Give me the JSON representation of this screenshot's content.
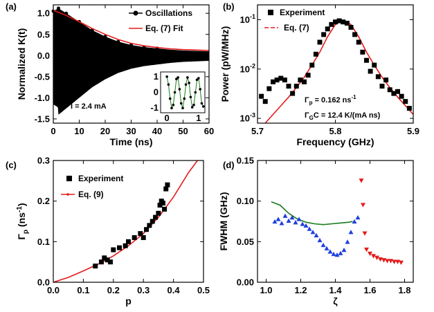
{
  "colors": {
    "black": "#000000",
    "red": "#e41a1c",
    "blue": "#1f3fe0",
    "green": "#1a7a1a"
  },
  "chart_data": [
    {
      "panel": "(a)",
      "type": "line",
      "xlabel": "Time (ns)",
      "ylabel": "Normalized K(t)",
      "xlim": [
        0,
        60
      ],
      "ylim": [
        -1.6,
        1.2
      ],
      "xticks": [
        "0",
        "10",
        "20",
        "30",
        "40",
        "50",
        "60"
      ],
      "yticks": [
        "-1.5",
        "-1.0",
        "-0.5",
        "0.0",
        "0.5",
        "1.0"
      ],
      "annotation": "I = 2.4 mA",
      "legend": [
        "Oscillations",
        "Eq. (7) Fit"
      ],
      "series": [
        {
          "name": "Oscillations",
          "envelope_x": [
            0,
            2,
            5,
            10,
            15,
            20,
            25,
            30,
            35,
            40,
            45,
            50,
            55,
            60
          ],
          "envelope_y": [
            1.05,
            1.12,
            1.0,
            0.8,
            0.6,
            0.45,
            0.33,
            0.25,
            0.2,
            0.17,
            0.14,
            0.12,
            0.11,
            0.1
          ]
        },
        {
          "name": "Eq. (7) Fit",
          "x": [
            0,
            5,
            10,
            15,
            20,
            25,
            30,
            35,
            40,
            45,
            50,
            55,
            60
          ],
          "y": [
            1.07,
            0.95,
            0.8,
            0.64,
            0.5,
            0.38,
            0.29,
            0.23,
            0.19,
            0.16,
            0.14,
            0.13,
            0.12
          ]
        }
      ],
      "inset": {
        "xlim": [
          -0.2,
          1.2
        ],
        "ylim": [
          -1.3,
          1.3
        ],
        "xticks": [
          "0",
          "1"
        ],
        "yticks": [
          "-1",
          "0",
          "1"
        ],
        "x": [
          0.0,
          0.05,
          0.1,
          0.15,
          0.2,
          0.25,
          0.3,
          0.35,
          0.4,
          0.45,
          0.5,
          0.55,
          0.6,
          0.65,
          0.7,
          0.75,
          0.8,
          0.85,
          0.9,
          0.95,
          1.0,
          1.05,
          1.1,
          1.15
        ],
        "y": [
          1.0,
          0.5,
          -0.4,
          -1.0,
          -0.8,
          0.0,
          0.85,
          0.95,
          0.2,
          -0.7,
          -1.0,
          -0.4,
          0.5,
          0.95,
          0.6,
          -0.3,
          -0.95,
          -0.8,
          0.0,
          0.8,
          0.9,
          0.2,
          -0.7,
          -0.9
        ]
      }
    },
    {
      "panel": "(b)",
      "type": "scatter",
      "xlabel": "Frequency (GHz)",
      "ylabel": "Power (pW/MHz)",
      "yscale": "log",
      "xlim": [
        5.7,
        5.9
      ],
      "ylim": [
        0.0008,
        0.2
      ],
      "xticks": [
        "5.7",
        "5.8",
        "5.9"
      ],
      "yticks": [
        "10",
        "10",
        "10"
      ],
      "ytick_exponents": [
        "-3",
        "-2",
        "-1"
      ],
      "legend": [
        "Experiment",
        "Eq. (7)"
      ],
      "annotations": [
        {
          "lines": [
            "Γ",
            "p",
            " = 0.162 ns",
            "-1"
          ]
        },
        {
          "lines": [
            "Γ",
            "G",
            "C = 12.4 K/(mA ns)"
          ]
        }
      ],
      "series": [
        {
          "name": "Experiment",
          "x": [
            5.705,
            5.71,
            5.715,
            5.72,
            5.725,
            5.73,
            5.735,
            5.74,
            5.745,
            5.75,
            5.755,
            5.76,
            5.765,
            5.77,
            5.775,
            5.78,
            5.785,
            5.79,
            5.795,
            5.8,
            5.805,
            5.81,
            5.815,
            5.82,
            5.825,
            5.83,
            5.835,
            5.84,
            5.845,
            5.85,
            5.855,
            5.86,
            5.865,
            5.87,
            5.875,
            5.88,
            5.885,
            5.89,
            5.895
          ],
          "y": [
            0.0028,
            0.0022,
            0.004,
            0.0055,
            0.006,
            0.0065,
            0.006,
            0.0045,
            0.0032,
            0.0045,
            0.006,
            0.0055,
            0.0075,
            0.012,
            0.02,
            0.035,
            0.05,
            0.065,
            0.08,
            0.09,
            0.095,
            0.09,
            0.085,
            0.07,
            0.05,
            0.035,
            0.022,
            0.015,
            0.009,
            0.012,
            0.007,
            0.0045,
            0.006,
            0.0038,
            0.0032,
            0.0035,
            0.0028,
            0.0022,
            0.0016
          ]
        },
        {
          "name": "Eq. (7)",
          "x": [
            5.71,
            5.72,
            5.73,
            5.74,
            5.75,
            5.76,
            5.77,
            5.78,
            5.79,
            5.8,
            5.81,
            5.82,
            5.83,
            5.84,
            5.85,
            5.86,
            5.87,
            5.88,
            5.89,
            5.9
          ],
          "y": [
            0.0008,
            0.0012,
            0.0018,
            0.0027,
            0.0042,
            0.0068,
            0.012,
            0.022,
            0.045,
            0.08,
            0.098,
            0.08,
            0.045,
            0.022,
            0.012,
            0.0068,
            0.0042,
            0.0027,
            0.0018,
            0.0012
          ]
        }
      ]
    },
    {
      "panel": "(c)",
      "type": "scatter",
      "xlabel": "p",
      "ylabel": "Γp (ns-1)",
      "xlim": [
        0.0,
        0.5
      ],
      "ylim": [
        0.0,
        0.3
      ],
      "xticks": [
        "0.0",
        "0.1",
        "0.2",
        "0.3",
        "0.4",
        "0.5"
      ],
      "yticks": [
        "0.0",
        "0.1",
        "0.2",
        "0.3"
      ],
      "legend": [
        "Experiment",
        "Eq. (9)"
      ],
      "series": [
        {
          "name": "Experiment",
          "x": [
            0.14,
            0.16,
            0.17,
            0.18,
            0.19,
            0.2,
            0.22,
            0.24,
            0.25,
            0.27,
            0.29,
            0.3,
            0.31,
            0.32,
            0.33,
            0.34,
            0.35,
            0.355,
            0.36,
            0.365,
            0.37,
            0.375,
            0.38
          ],
          "y": [
            0.04,
            0.05,
            0.06,
            0.055,
            0.05,
            0.08,
            0.085,
            0.09,
            0.1,
            0.11,
            0.12,
            0.11,
            0.13,
            0.14,
            0.15,
            0.16,
            0.17,
            0.19,
            0.2,
            0.195,
            0.18,
            0.23,
            0.24
          ]
        },
        {
          "name": "Eq. (9)",
          "x": [
            0.0,
            0.05,
            0.1,
            0.15,
            0.2,
            0.25,
            0.3,
            0.35,
            0.4,
            0.45,
            0.48
          ],
          "y": [
            0.0,
            0.012,
            0.028,
            0.045,
            0.065,
            0.09,
            0.12,
            0.16,
            0.21,
            0.27,
            0.3
          ]
        }
      ]
    },
    {
      "panel": "(d)",
      "type": "scatter",
      "xlabel": "ζ",
      "ylabel": "FWHM (GHz)",
      "xlim": [
        0.95,
        1.85
      ],
      "ylim": [
        0.0,
        0.15
      ],
      "xticks": [
        "1.0",
        "1.2",
        "1.4",
        "1.6",
        "1.8"
      ],
      "yticks": [
        "0.00",
        "0.05",
        "0.10",
        "0.15"
      ],
      "series": [
        {
          "name": "blue triangles",
          "x": [
            1.05,
            1.07,
            1.09,
            1.11,
            1.13,
            1.15,
            1.17,
            1.19,
            1.21,
            1.23,
            1.25,
            1.27,
            1.29,
            1.31,
            1.33,
            1.35,
            1.37,
            1.39,
            1.41,
            1.43,
            1.45,
            1.47,
            1.49,
            1.51,
            1.53
          ],
          "y": [
            0.075,
            0.078,
            0.073,
            0.082,
            0.076,
            0.08,
            0.074,
            0.078,
            0.072,
            0.07,
            0.066,
            0.062,
            0.058,
            0.052,
            0.046,
            0.042,
            0.038,
            0.035,
            0.034,
            0.036,
            0.04,
            0.05,
            0.062,
            0.075,
            0.08
          ]
        },
        {
          "name": "red triangles",
          "x": [
            1.55,
            1.56,
            1.57,
            1.58,
            1.6,
            1.62,
            1.64,
            1.66,
            1.68,
            1.7,
            1.72,
            1.74,
            1.76,
            1.78
          ],
          "y": [
            0.125,
            0.095,
            0.06,
            0.04,
            0.035,
            0.032,
            0.03,
            0.028,
            0.027,
            0.026,
            0.026,
            0.025,
            0.025,
            0.024
          ]
        },
        {
          "name": "green line",
          "x": [
            1.03,
            1.08,
            1.13,
            1.18,
            1.23,
            1.28,
            1.33,
            1.38,
            1.43,
            1.48,
            1.5
          ],
          "y": [
            0.099,
            0.095,
            0.085,
            0.078,
            0.074,
            0.072,
            0.071,
            0.072,
            0.073,
            0.074,
            0.075
          ]
        }
      ]
    }
  ]
}
